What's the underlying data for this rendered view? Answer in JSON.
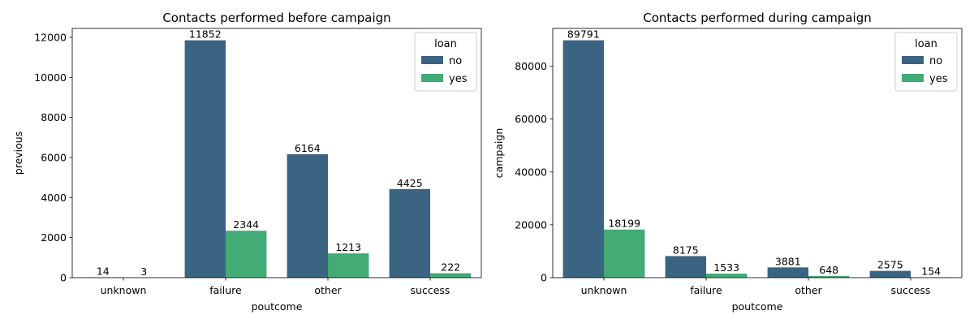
{
  "colors": {
    "no": "#3b6482",
    "yes": "#42ab76",
    "axis": "#000000",
    "legend_border": "#cccccc"
  },
  "chart_data": [
    {
      "type": "bar",
      "title": "Contacts performed before campaign",
      "xlabel": "poutcome",
      "ylabel": "previous",
      "categories": [
        "unknown",
        "failure",
        "other",
        "success"
      ],
      "series": [
        {
          "name": "no",
          "values": [
            14,
            11852,
            6164,
            4425
          ]
        },
        {
          "name": "yes",
          "values": [
            3,
            2344,
            1213,
            222
          ]
        }
      ],
      "ylim": [
        0,
        12446
      ],
      "yticks": [
        0,
        2000,
        4000,
        6000,
        8000,
        10000,
        12000
      ],
      "legend": {
        "title": "loan",
        "placement": "top-right"
      },
      "grid": false
    },
    {
      "type": "bar",
      "title": "Contacts performed during campaign",
      "xlabel": "poutcome",
      "ylabel": "campaign",
      "categories": [
        "unknown",
        "failure",
        "other",
        "success"
      ],
      "series": [
        {
          "name": "no",
          "values": [
            89791,
            8175,
            3881,
            2575
          ]
        },
        {
          "name": "yes",
          "values": [
            18199,
            1533,
            648,
            154
          ]
        }
      ],
      "ylim": [
        0,
        94281
      ],
      "yticks": [
        0,
        20000,
        40000,
        60000,
        80000
      ],
      "legend": {
        "title": "loan",
        "placement": "top-right"
      },
      "grid": false
    }
  ]
}
